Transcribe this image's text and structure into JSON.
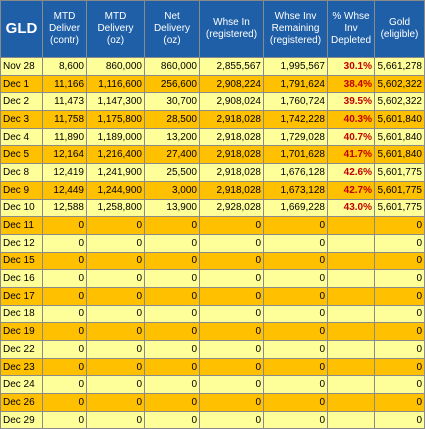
{
  "ticker": "GLD",
  "columns": [
    "MTD Deliver (contr)",
    "MTD Delivery (oz)",
    "Net Delivery (oz)",
    "Whse In (registered)",
    "Whse Inv Remaining (registered)",
    "% Whse Inv Depleted",
    "Gold (eligible)"
  ],
  "colors": {
    "header": "#1f5fa7",
    "row_yellow": "#ffff99",
    "row_orange": "#ffc000",
    "percent_text": "#c00000"
  },
  "rows": [
    {
      "date": "Nov 28",
      "band": "yellow",
      "c": [
        "8,600",
        "860,000",
        "860,000",
        "2,855,567",
        "1,995,567",
        "30.1%",
        "5,661,278"
      ]
    },
    {
      "date": "Dec 1",
      "band": "orange",
      "c": [
        "11,166",
        "1,116,600",
        "256,600",
        "2,908,224",
        "1,791,624",
        "38.4%",
        "5,602,322"
      ]
    },
    {
      "date": "Dec 2",
      "band": "yellow",
      "c": [
        "11,473",
        "1,147,300",
        "30,700",
        "2,908,024",
        "1,760,724",
        "39.5%",
        "5,602,322"
      ]
    },
    {
      "date": "Dec 3",
      "band": "orange",
      "c": [
        "11,758",
        "1,175,800",
        "28,500",
        "2,918,028",
        "1,742,228",
        "40.3%",
        "5,601,840"
      ]
    },
    {
      "date": "Dec 4",
      "band": "yellow",
      "c": [
        "11,890",
        "1,189,000",
        "13,200",
        "2,918,028",
        "1,729,028",
        "40.7%",
        "5,601,840"
      ]
    },
    {
      "date": "Dec 5",
      "band": "orange",
      "c": [
        "12,164",
        "1,216,400",
        "27,400",
        "2,918,028",
        "1,701,628",
        "41.7%",
        "5,601,840"
      ]
    },
    {
      "date": "Dec 8",
      "band": "yellow",
      "c": [
        "12,419",
        "1,241,900",
        "25,500",
        "2,918,028",
        "1,676,128",
        "42.6%",
        "5,601,775"
      ]
    },
    {
      "date": "Dec 9",
      "band": "orange",
      "c": [
        "12,449",
        "1,244,900",
        "3,000",
        "2,918,028",
        "1,673,128",
        "42.7%",
        "5,601,775"
      ]
    },
    {
      "date": "Dec 10",
      "band": "yellow",
      "c": [
        "12,588",
        "1,258,800",
        "13,900",
        "2,928,028",
        "1,669,228",
        "43.0%",
        "5,601,775"
      ]
    },
    {
      "date": "Dec 11",
      "band": "orange",
      "c": [
        "0",
        "0",
        "0",
        "0",
        "0",
        "",
        "0"
      ]
    },
    {
      "date": "Dec 12",
      "band": "yellow",
      "c": [
        "0",
        "0",
        "0",
        "0",
        "0",
        "",
        "0"
      ]
    },
    {
      "date": "Dec 15",
      "band": "orange",
      "c": [
        "0",
        "0",
        "0",
        "0",
        "0",
        "",
        "0"
      ]
    },
    {
      "date": "Dec 16",
      "band": "yellow",
      "c": [
        "0",
        "0",
        "0",
        "0",
        "0",
        "",
        "0"
      ]
    },
    {
      "date": "Dec 17",
      "band": "orange",
      "c": [
        "0",
        "0",
        "0",
        "0",
        "0",
        "",
        "0"
      ]
    },
    {
      "date": "Dec 18",
      "band": "yellow",
      "c": [
        "0",
        "0",
        "0",
        "0",
        "0",
        "",
        "0"
      ]
    },
    {
      "date": "Dec 19",
      "band": "orange",
      "c": [
        "0",
        "0",
        "0",
        "0",
        "0",
        "",
        "0"
      ]
    },
    {
      "date": "Dec 22",
      "band": "yellow",
      "c": [
        "0",
        "0",
        "0",
        "0",
        "0",
        "",
        "0"
      ]
    },
    {
      "date": "Dec 23",
      "band": "orange",
      "c": [
        "0",
        "0",
        "0",
        "0",
        "0",
        "",
        "0"
      ]
    },
    {
      "date": "Dec 24",
      "band": "yellow",
      "c": [
        "0",
        "0",
        "0",
        "0",
        "0",
        "",
        "0"
      ]
    },
    {
      "date": "Dec 26",
      "band": "orange",
      "c": [
        "0",
        "0",
        "0",
        "0",
        "0",
        "",
        "0"
      ]
    },
    {
      "date": "Dec 29",
      "band": "yellow",
      "c": [
        "0",
        "0",
        "0",
        "0",
        "0",
        "",
        "0"
      ]
    }
  ]
}
